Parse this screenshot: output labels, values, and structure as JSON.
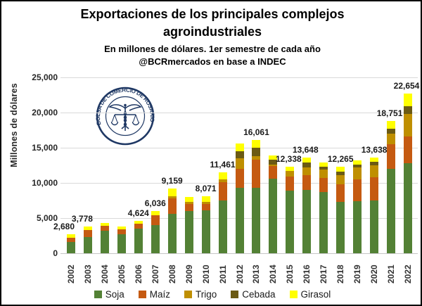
{
  "header": {
    "title_line1": "Exportaciones de los principales complejos",
    "title_line2": "agroindustriales",
    "subtitle_line1": "En millones de dólares. 1er semestre de cada año",
    "subtitle_line2": "@BCRmercados en base a INDEC"
  },
  "logo": {
    "ring_text": "BOLSA DE COMERCIO DE ROSARIO",
    "color": "#1f3864"
  },
  "chart_data": {
    "type": "bar",
    "stacked": true,
    "title": "Exportaciones de los principales complejos agroindustriales",
    "subtitle": "En millones de dólares. 1er semestre de cada año @BCRmercados en base a INDEC",
    "ylabel": "Millones de dólares",
    "xlabel": "",
    "ylim": [
      0,
      25000
    ],
    "ytick_interval": 5000,
    "yticks": [
      "25,000",
      "20,000",
      "15,000",
      "10,000",
      "5,000",
      "0"
    ],
    "grid": true,
    "legend_position": "bottom",
    "categories": [
      "2002",
      "2003",
      "2004",
      "2005",
      "2006",
      "2007",
      "2008",
      "2009",
      "2010",
      "2011",
      "2012",
      "2013",
      "2014",
      "2015",
      "2016",
      "2017",
      "2018",
      "2019",
      "2020",
      "2021",
      "2022"
    ],
    "series": [
      {
        "name": "Soja",
        "color": "#538135",
        "values": [
          1600,
          2280,
          3200,
          2700,
          3500,
          4000,
          5600,
          6000,
          6100,
          7500,
          9300,
          9300,
          10600,
          8900,
          9000,
          8700,
          7300,
          7400,
          7500,
          12000,
          12800
        ]
      },
      {
        "name": "Maíz",
        "color": "#c55a11",
        "values": [
          640,
          1000,
          680,
          680,
          664,
          1400,
          2200,
          1000,
          900,
          2600,
          2700,
          4000,
          1800,
          2000,
          2148,
          2000,
          2500,
          3100,
          3300,
          3500,
          3800
        ]
      },
      {
        "name": "Trigo",
        "color": "#bf8f00",
        "values": [
          0,
          0,
          0,
          0,
          0,
          0,
          300,
          300,
          300,
          360,
          1500,
          500,
          200,
          838,
          1100,
          1200,
          1300,
          1700,
          1700,
          1500,
          3200
        ]
      },
      {
        "name": "Cebada",
        "color": "#6b5a13",
        "values": [
          0,
          0,
          0,
          0,
          0,
          0,
          0,
          0,
          0,
          0,
          1000,
          1200,
          700,
          0,
          700,
          450,
          515,
          450,
          488,
          700,
          1100
        ]
      },
      {
        "name": "Girasol",
        "color": "#ffff00",
        "values": [
          440,
          498,
          420,
          420,
          460,
          636,
          1059,
          700,
          771,
          1001,
          1100,
          1061,
          600,
          600,
          700,
          550,
          650,
          550,
          650,
          1051,
          1754
        ]
      }
    ],
    "totals": [
      2680,
      3778,
      4300,
      3800,
      4624,
      6036,
      9159,
      8000,
      8071,
      11461,
      15600,
      16061,
      13900,
      12338,
      13648,
      12900,
      12265,
      13200,
      13638,
      18751,
      22654
    ],
    "value_labels": [
      {
        "year": "2002",
        "text": "2,680",
        "dx": -10
      },
      {
        "year": "2003",
        "text": "3,778",
        "dx": -8
      },
      {
        "year": "2006",
        "text": "4,624",
        "dx": 0
      },
      {
        "year": "2007",
        "text": "6,036",
        "dx": 0
      },
      {
        "year": "2008",
        "text": "9,159",
        "dx": 0
      },
      {
        "year": "2010",
        "text": "8,071",
        "dx": 0
      },
      {
        "year": "2011",
        "text": "11,461",
        "dx": 0
      },
      {
        "year": "2013",
        "text": "16,061",
        "dx": 0
      },
      {
        "year": "2015",
        "text": "12,338",
        "dx": -2
      },
      {
        "year": "2016",
        "text": "13,648",
        "dx": -2
      },
      {
        "year": "2018",
        "text": "12,265",
        "dx": 0
      },
      {
        "year": "2020",
        "text": "13,638",
        "dx": 0
      },
      {
        "year": "2021",
        "text": "18,751",
        "dx": -2
      },
      {
        "year": "2022",
        "text": "22,654",
        "dx": -2
      }
    ]
  }
}
